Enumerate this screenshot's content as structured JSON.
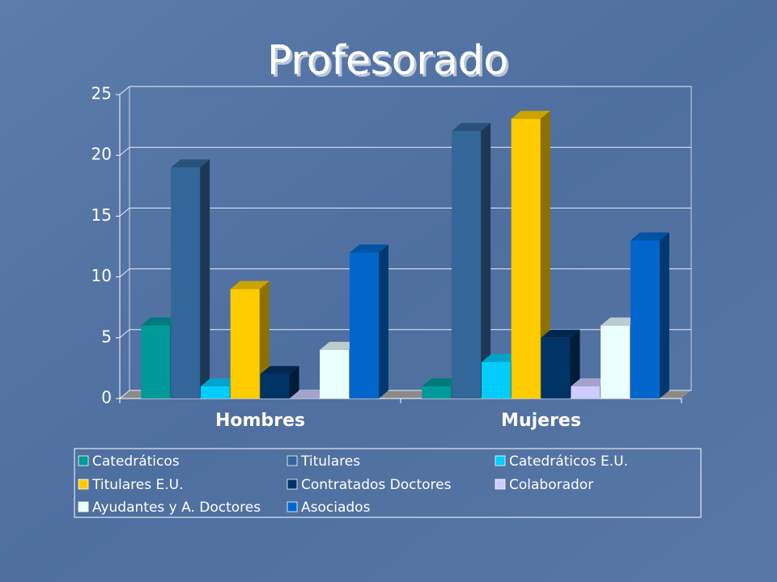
{
  "chart_data": {
    "type": "bar3d",
    "title": "Profesorado",
    "categories": [
      "Hombres",
      "Mujeres"
    ],
    "series": [
      {
        "name": "Catedráticos",
        "color": "#009999",
        "values": [
          6,
          1
        ]
      },
      {
        "name": "Titulares",
        "color": "#336699",
        "values": [
          19,
          22
        ]
      },
      {
        "name": "Catedráticos E.U.",
        "color": "#00ccff",
        "values": [
          1,
          3
        ]
      },
      {
        "name": "Titulares E.U.",
        "color": "#ffcc00",
        "values": [
          9,
          23
        ]
      },
      {
        "name": "Contratados Doctores",
        "color": "#003366",
        "values": [
          2,
          5
        ]
      },
      {
        "name": "Colaborador",
        "color": "#ccccff",
        "values": [
          0,
          1
        ]
      },
      {
        "name": "Ayudantes y A. Doctores",
        "color": "#eaffff",
        "values": [
          4,
          6
        ]
      },
      {
        "name": "Asociados",
        "color": "#0066cc",
        "values": [
          12,
          13
        ]
      }
    ],
    "ylim": [
      0,
      25
    ],
    "yticks": [
      0,
      5,
      10,
      15,
      20,
      25
    ],
    "grid": true,
    "legend": "bottom"
  }
}
